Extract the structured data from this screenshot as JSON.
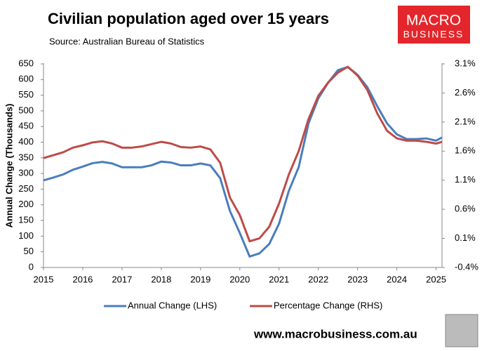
{
  "chart_data": {
    "type": "line",
    "title": "Civilian population aged over 15 years",
    "subtitle": "Source: Australian Bureau of Statistics",
    "y_label": "Annual Change (Thousands)",
    "logo": [
      "MACRO",
      "BUSINESS"
    ],
    "footer": "www.macrobusiness.com.au",
    "x": [
      2015,
      2015.25,
      2015.5,
      2015.75,
      2016,
      2016.25,
      2016.5,
      2016.75,
      2017,
      2017.25,
      2017.5,
      2017.75,
      2018,
      2018.25,
      2018.5,
      2018.75,
      2019,
      2019.25,
      2019.5,
      2019.75,
      2020,
      2020.25,
      2020.5,
      2020.75,
      2021,
      2021.25,
      2021.5,
      2021.75,
      2022,
      2022.25,
      2022.5,
      2022.75,
      2023,
      2023.25,
      2023.5,
      2023.75,
      2024,
      2024.25,
      2024.5,
      2024.75,
      2025,
      2025.15
    ],
    "xlim": [
      2015,
      2025.15
    ],
    "xticks": [
      2015,
      2016,
      2017,
      2018,
      2019,
      2020,
      2021,
      2022,
      2023,
      2024,
      2025
    ],
    "ylim": [
      0,
      650
    ],
    "yticks": [
      0,
      50,
      100,
      150,
      200,
      250,
      300,
      350,
      400,
      450,
      500,
      550,
      600,
      650
    ],
    "y2lim": [
      -0.4,
      3.1
    ],
    "y2ticks": [
      {
        "value": -0.4,
        "label": "-0.4%"
      },
      {
        "value": 0.1,
        "label": "0.1%"
      },
      {
        "value": 0.6,
        "label": "0.6%"
      },
      {
        "value": 1.1,
        "label": "1.1%"
      },
      {
        "value": 1.6,
        "label": "1.6%"
      },
      {
        "value": 2.1,
        "label": "2.1%"
      },
      {
        "value": 2.6,
        "label": "2.6%"
      },
      {
        "value": 3.1,
        "label": "3.1%"
      }
    ],
    "grid": false,
    "series": [
      {
        "name": "Annual Change (LHS)",
        "color": "#4a7ebb",
        "axis": "y",
        "values": [
          278,
          287,
          297,
          312,
          322,
          333,
          337,
          332,
          320,
          320,
          320,
          326,
          338,
          335,
          326,
          326,
          332,
          326,
          285,
          180,
          110,
          35,
          45,
          75,
          140,
          245,
          320,
          460,
          540,
          590,
          630,
          640,
          615,
          575,
          515,
          460,
          425,
          410,
          410,
          412,
          405,
          415
        ]
      },
      {
        "name": "Percentage Change (RHS)",
        "color": "#be4b48",
        "axis": "y2",
        "values": [
          1.48,
          1.53,
          1.58,
          1.66,
          1.7,
          1.75,
          1.77,
          1.73,
          1.66,
          1.66,
          1.68,
          1.72,
          1.76,
          1.73,
          1.67,
          1.66,
          1.68,
          1.63,
          1.4,
          0.8,
          0.5,
          0.05,
          0.1,
          0.3,
          0.7,
          1.2,
          1.6,
          2.15,
          2.55,
          2.78,
          2.95,
          3.05,
          2.9,
          2.65,
          2.25,
          1.95,
          1.82,
          1.78,
          1.78,
          1.76,
          1.73,
          1.76
        ]
      }
    ]
  }
}
